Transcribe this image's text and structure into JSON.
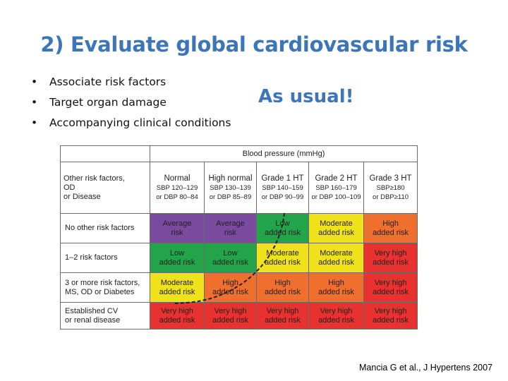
{
  "title": "2) Evaluate global cardiovascular risk",
  "bullets": [
    "Associate risk factors",
    "Target organ damage",
    "Accompanying clinical conditions"
  ],
  "as_usual": "As usual!",
  "table": {
    "bp_header": "Blood pressure (mmHg)",
    "corner": [
      "Other risk factors,",
      "OD",
      "or Disease"
    ],
    "columns": [
      {
        "name": "Normal",
        "sub1": "SBP 120–129",
        "sub2": "or DBP 80–84"
      },
      {
        "name": "High normal",
        "sub1": "SBP 130–139",
        "sub2": "or DBP 85–89"
      },
      {
        "name": "Grade 1 HT",
        "sub1": "SBP 140–159",
        "sub2": "or DBP 90–99"
      },
      {
        "name": "Grade 2 HT",
        "sub1": "SBP 160–179",
        "sub2": "or DBP 100–109"
      },
      {
        "name": "Grade 3 HT",
        "sub1": "SBP≥180",
        "sub2": "or DBP≥110"
      }
    ],
    "rows": [
      {
        "label": [
          "No other risk factors"
        ],
        "cells": [
          {
            "l1": "Average",
            "l2": "risk",
            "c": "avg"
          },
          {
            "l1": "Average",
            "l2": "risk",
            "c": "avg"
          },
          {
            "l1": "Low",
            "l2": "added risk",
            "c": "low"
          },
          {
            "l1": "Moderate",
            "l2": "added risk",
            "c": "mod"
          },
          {
            "l1": "High",
            "l2": "added risk",
            "c": "high"
          }
        ]
      },
      {
        "label": [
          "1–2 risk factors"
        ],
        "cells": [
          {
            "l1": "Low",
            "l2": "added risk",
            "c": "low"
          },
          {
            "l1": "Low",
            "l2": "added risk",
            "c": "low"
          },
          {
            "l1": "Moderate",
            "l2": "added risk",
            "c": "mod"
          },
          {
            "l1": "Moderate",
            "l2": "added risk",
            "c": "mod"
          },
          {
            "l1": "Very high",
            "l2": "added risk",
            "c": "vhigh"
          }
        ]
      },
      {
        "label": [
          "3 or more risk factors,",
          "MS, OD or Diabetes"
        ],
        "cells": [
          {
            "l1": "Moderate",
            "l2": "added risk",
            "c": "mod"
          },
          {
            "l1": "High",
            "l2": "added risk",
            "c": "high"
          },
          {
            "l1": "High",
            "l2": "added risk",
            "c": "high"
          },
          {
            "l1": "High",
            "l2": "added risk",
            "c": "high"
          },
          {
            "l1": "Very high",
            "l2": "added risk",
            "c": "vhigh"
          }
        ]
      },
      {
        "label": [
          "Established CV",
          "or renal disease"
        ],
        "cells": [
          {
            "l1": "Very high",
            "l2": "added risk",
            "c": "vhigh"
          },
          {
            "l1": "Very high",
            "l2": "added risk",
            "c": "vhigh"
          },
          {
            "l1": "Very high",
            "l2": "added risk",
            "c": "vhigh"
          },
          {
            "l1": "Very high",
            "l2": "added risk",
            "c": "vhigh"
          },
          {
            "l1": "Very high",
            "l2": "added risk",
            "c": "vhigh"
          }
        ]
      }
    ]
  },
  "citation": "Mancia G et al., J Hypertens 2007",
  "colors": {
    "title": "#3d76b8",
    "average_risk": "#7a4a9e",
    "low_risk": "#23a44a",
    "moderate_risk": "#f0e21a",
    "high_risk": "#ef6f2e",
    "very_high_risk": "#e8322f"
  }
}
